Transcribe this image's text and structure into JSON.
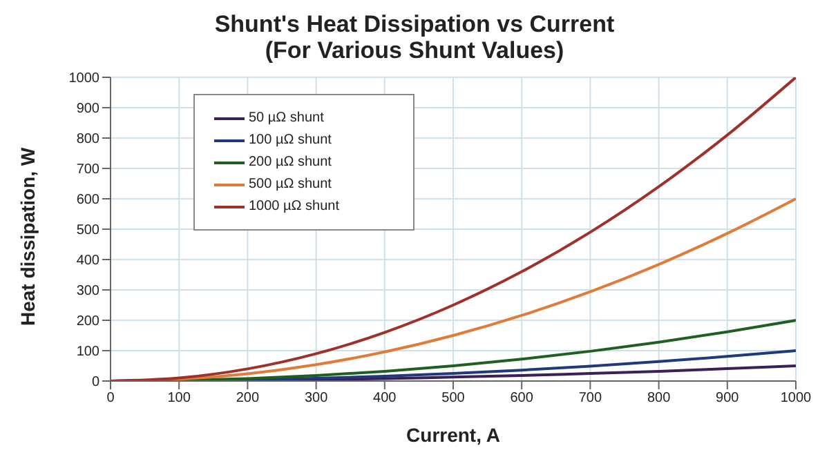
{
  "chart_data": {
    "type": "line",
    "title": "Shunt's Heat Dissipation vs Current",
    "subtitle": "(For Various Shunt Values)",
    "xlabel": "Current, A",
    "ylabel": "Heat dissipation, W",
    "x": [
      0,
      100,
      200,
      300,
      400,
      500,
      600,
      700,
      800,
      900,
      1000
    ],
    "series": [
      {
        "name": "50 µΩ shunt",
        "color": "#3c1e5a",
        "values": [
          0,
          1,
          2,
          5,
          8,
          13,
          18,
          25,
          32,
          41,
          50
        ]
      },
      {
        "name": "100 µΩ shunt",
        "color": "#1f3a7a",
        "values": [
          0,
          1,
          4,
          9,
          16,
          25,
          36,
          49,
          64,
          81,
          100
        ]
      },
      {
        "name": "200 µΩ shunt",
        "color": "#1f5f1f",
        "values": [
          0,
          2,
          8,
          18,
          32,
          50,
          72,
          98,
          128,
          162,
          200
        ]
      },
      {
        "name": "500 µΩ shunt",
        "color": "#e07b39",
        "values": [
          0,
          6,
          24,
          54,
          96,
          150,
          216,
          294,
          384,
          486,
          600
        ]
      },
      {
        "name": "1000 µΩ shunt",
        "color": "#a0302a",
        "values": [
          0,
          10,
          40,
          90,
          160,
          250,
          360,
          490,
          640,
          810,
          1000
        ]
      }
    ],
    "xlim": [
      0,
      1000
    ],
    "xticks": [
      0,
      100,
      200,
      300,
      400,
      500,
      600,
      700,
      800,
      900,
      1000
    ],
    "ylim": [
      0,
      1000
    ],
    "yticks": [
      0,
      100,
      200,
      300,
      400,
      500,
      600,
      700,
      800,
      900,
      1000
    ],
    "grid": true,
    "legend": "top left",
    "marker": "none",
    "line_style": "solid"
  }
}
